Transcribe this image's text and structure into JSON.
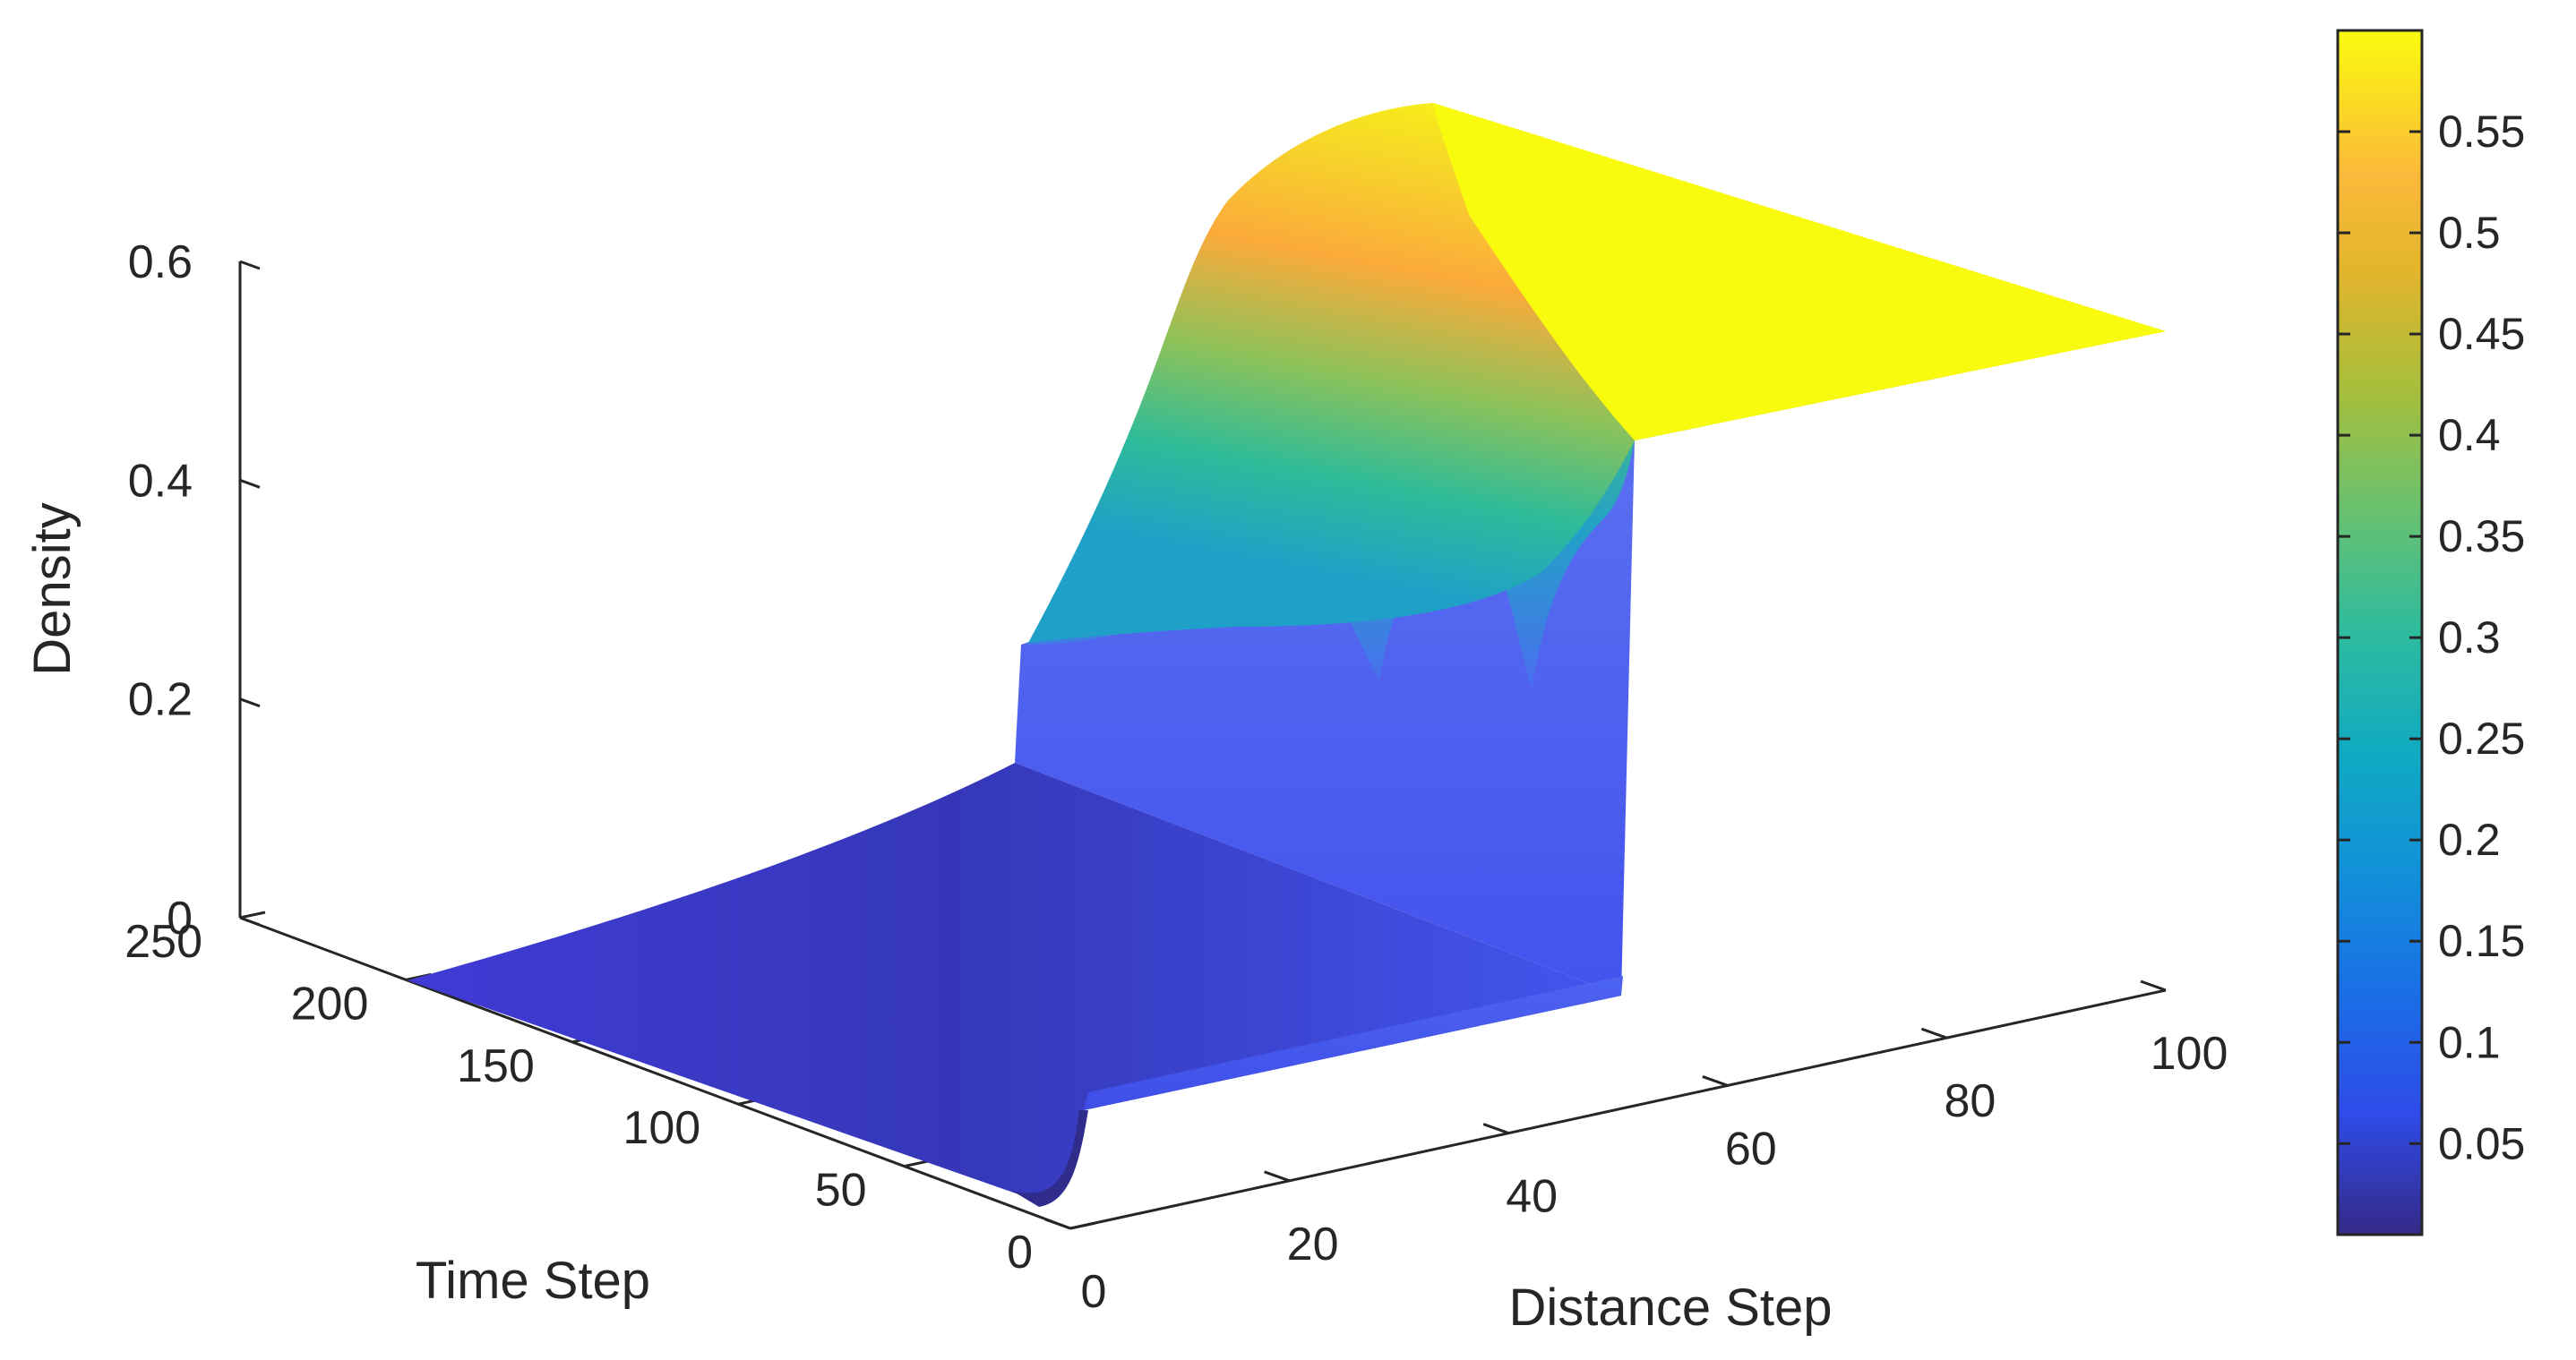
{
  "chart_data": {
    "type": "surface",
    "xlabel": "Distance Step",
    "ylabel": "Time Step",
    "zlabel": "Density",
    "xlim": [
      0,
      100
    ],
    "ylim": [
      0,
      250
    ],
    "zlim": [
      0,
      0.6
    ],
    "x_ticks": [
      "0",
      "20",
      "40",
      "60",
      "80",
      "100"
    ],
    "y_ticks": [
      "0",
      "50",
      "100",
      "150",
      "200",
      "250"
    ],
    "z_ticks": [
      "0",
      "0.2",
      "0.4",
      "0.6"
    ],
    "colormap": "parula",
    "colorbar": {
      "range": [
        0.005,
        0.6
      ],
      "ticks": [
        "0.05",
        "0.1",
        "0.15",
        "0.2",
        "0.25",
        "0.3",
        "0.35",
        "0.4",
        "0.45",
        "0.5",
        "0.55"
      ]
    },
    "surface_description": {
      "low_density_region": {
        "x_range": [
          0,
          48
        ],
        "density": 0.1
      },
      "initial_jump": {
        "x": 48,
        "t": 0,
        "from": 0.0,
        "to": 0.1
      },
      "high_density_region": {
        "x_range": [
          48,
          100
        ],
        "density_max": 0.6
      },
      "jam_front_rise_over_time": true
    },
    "grid": false
  }
}
